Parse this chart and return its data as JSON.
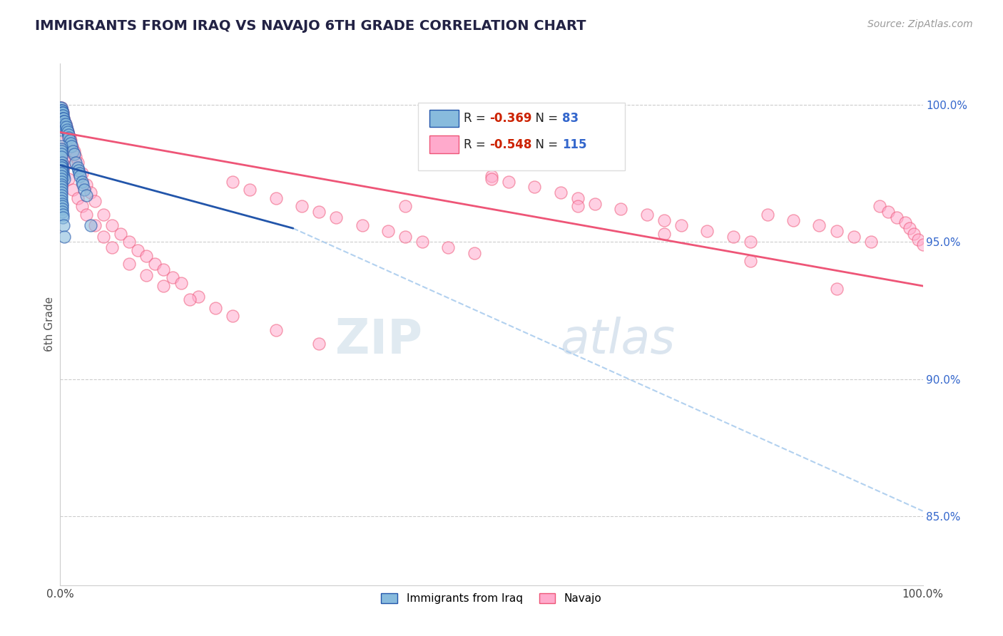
{
  "title": "IMMIGRANTS FROM IRAQ VS NAVAJO 6TH GRADE CORRELATION CHART",
  "source_text": "Source: ZipAtlas.com",
  "ylabel": "6th Grade",
  "blue_color": "#88BBDD",
  "pink_color": "#FFAACC",
  "blue_line_color": "#2255AA",
  "pink_line_color": "#EE5577",
  "dash_line_color": "#AACCEE",
  "watermark_zip": "ZIP",
  "watermark_atlas": "atlas",
  "legend_r1_val": "-0.369",
  "legend_n1_val": "83",
  "legend_r2_val": "-0.548",
  "legend_n2_val": "115",
  "iraq_scatter_x": [
    0.0,
    0.0,
    0.001,
    0.001,
    0.001,
    0.001,
    0.001,
    0.001,
    0.001,
    0.001,
    0.001,
    0.001,
    0.002,
    0.002,
    0.002,
    0.002,
    0.002,
    0.002,
    0.002,
    0.003,
    0.003,
    0.003,
    0.003,
    0.004,
    0.004,
    0.004,
    0.005,
    0.005,
    0.006,
    0.007,
    0.008,
    0.009,
    0.01,
    0.01,
    0.011,
    0.012,
    0.013,
    0.015,
    0.016,
    0.018,
    0.02,
    0.021,
    0.022,
    0.023,
    0.025,
    0.026,
    0.028,
    0.03,
    0.001,
    0.001,
    0.001,
    0.001,
    0.001,
    0.002,
    0.002,
    0.002,
    0.003,
    0.003,
    0.004,
    0.005,
    0.001,
    0.001,
    0.001,
    0.001,
    0.001,
    0.001,
    0.001,
    0.001,
    0.001,
    0.001,
    0.001,
    0.001,
    0.001,
    0.001,
    0.002,
    0.002,
    0.002,
    0.002,
    0.003,
    0.003,
    0.004,
    0.005,
    0.035
  ],
  "iraq_scatter_y": [
    0.999,
    0.998,
    0.999,
    0.998,
    0.997,
    0.996,
    0.996,
    0.995,
    0.994,
    0.993,
    0.992,
    0.991,
    0.998,
    0.997,
    0.996,
    0.995,
    0.994,
    0.993,
    0.992,
    0.997,
    0.996,
    0.995,
    0.993,
    0.995,
    0.994,
    0.993,
    0.994,
    0.992,
    0.993,
    0.992,
    0.991,
    0.99,
    0.989,
    0.988,
    0.987,
    0.986,
    0.985,
    0.983,
    0.982,
    0.979,
    0.977,
    0.976,
    0.975,
    0.974,
    0.972,
    0.971,
    0.969,
    0.967,
    0.985,
    0.984,
    0.983,
    0.982,
    0.981,
    0.979,
    0.978,
    0.977,
    0.976,
    0.975,
    0.974,
    0.973,
    0.978,
    0.977,
    0.976,
    0.975,
    0.974,
    0.973,
    0.972,
    0.971,
    0.97,
    0.969,
    0.968,
    0.967,
    0.966,
    0.965,
    0.964,
    0.963,
    0.962,
    0.961,
    0.96,
    0.959,
    0.956,
    0.952,
    0.956
  ],
  "navajo_scatter_x": [
    0.0,
    0.0,
    0.0,
    0.001,
    0.001,
    0.001,
    0.001,
    0.001,
    0.001,
    0.001,
    0.001,
    0.002,
    0.002,
    0.002,
    0.002,
    0.002,
    0.003,
    0.003,
    0.003,
    0.004,
    0.004,
    0.005,
    0.005,
    0.006,
    0.007,
    0.008,
    0.009,
    0.01,
    0.011,
    0.012,
    0.014,
    0.016,
    0.018,
    0.02,
    0.025,
    0.03,
    0.035,
    0.04,
    0.05,
    0.06,
    0.07,
    0.08,
    0.09,
    0.1,
    0.11,
    0.12,
    0.13,
    0.14,
    0.16,
    0.18,
    0.2,
    0.22,
    0.25,
    0.28,
    0.3,
    0.32,
    0.35,
    0.38,
    0.4,
    0.42,
    0.45,
    0.48,
    0.5,
    0.52,
    0.55,
    0.58,
    0.6,
    0.62,
    0.65,
    0.68,
    0.7,
    0.72,
    0.75,
    0.78,
    0.8,
    0.82,
    0.85,
    0.88,
    0.9,
    0.92,
    0.94,
    0.95,
    0.96,
    0.97,
    0.98,
    0.985,
    0.99,
    0.995,
    1.0,
    0.001,
    0.002,
    0.003,
    0.004,
    0.005,
    0.01,
    0.015,
    0.02,
    0.025,
    0.03,
    0.04,
    0.05,
    0.06,
    0.08,
    0.1,
    0.12,
    0.15,
    0.2,
    0.25,
    0.3,
    0.4,
    0.5,
    0.6,
    0.7,
    0.8,
    0.9
  ],
  "navajo_scatter_y": [
    0.999,
    0.998,
    0.997,
    0.999,
    0.998,
    0.997,
    0.996,
    0.995,
    0.994,
    0.993,
    0.992,
    0.998,
    0.997,
    0.996,
    0.995,
    0.994,
    0.997,
    0.995,
    0.993,
    0.995,
    0.994,
    0.994,
    0.992,
    0.993,
    0.992,
    0.991,
    0.99,
    0.989,
    0.988,
    0.987,
    0.985,
    0.983,
    0.981,
    0.979,
    0.975,
    0.971,
    0.968,
    0.965,
    0.96,
    0.956,
    0.953,
    0.95,
    0.947,
    0.945,
    0.942,
    0.94,
    0.937,
    0.935,
    0.93,
    0.926,
    0.972,
    0.969,
    0.966,
    0.963,
    0.961,
    0.959,
    0.956,
    0.954,
    0.952,
    0.95,
    0.948,
    0.946,
    0.974,
    0.972,
    0.97,
    0.968,
    0.966,
    0.964,
    0.962,
    0.96,
    0.958,
    0.956,
    0.954,
    0.952,
    0.95,
    0.96,
    0.958,
    0.956,
    0.954,
    0.952,
    0.95,
    0.963,
    0.961,
    0.959,
    0.957,
    0.955,
    0.953,
    0.951,
    0.949,
    0.986,
    0.984,
    0.982,
    0.98,
    0.978,
    0.973,
    0.969,
    0.966,
    0.963,
    0.96,
    0.956,
    0.952,
    0.948,
    0.942,
    0.938,
    0.934,
    0.929,
    0.923,
    0.918,
    0.913,
    0.963,
    0.973,
    0.963,
    0.953,
    0.943,
    0.933
  ],
  "blue_line_x0": 0.0,
  "blue_line_y0": 0.978,
  "blue_line_x1": 0.27,
  "blue_line_y1": 0.955,
  "dash_line_x0": 0.27,
  "dash_line_y0": 0.955,
  "dash_line_x1": 1.0,
  "dash_line_y1": 0.852,
  "pink_line_x0": 0.0,
  "pink_line_y0": 0.99,
  "pink_line_x1": 1.0,
  "pink_line_y1": 0.934,
  "xlim": [
    0.0,
    1.0
  ],
  "ylim": [
    0.825,
    1.015
  ],
  "yticks": [
    0.85,
    0.9,
    0.95,
    1.0
  ],
  "ytick_labels": [
    "85.0%",
    "90.0%",
    "95.0%",
    "100.0%"
  ]
}
